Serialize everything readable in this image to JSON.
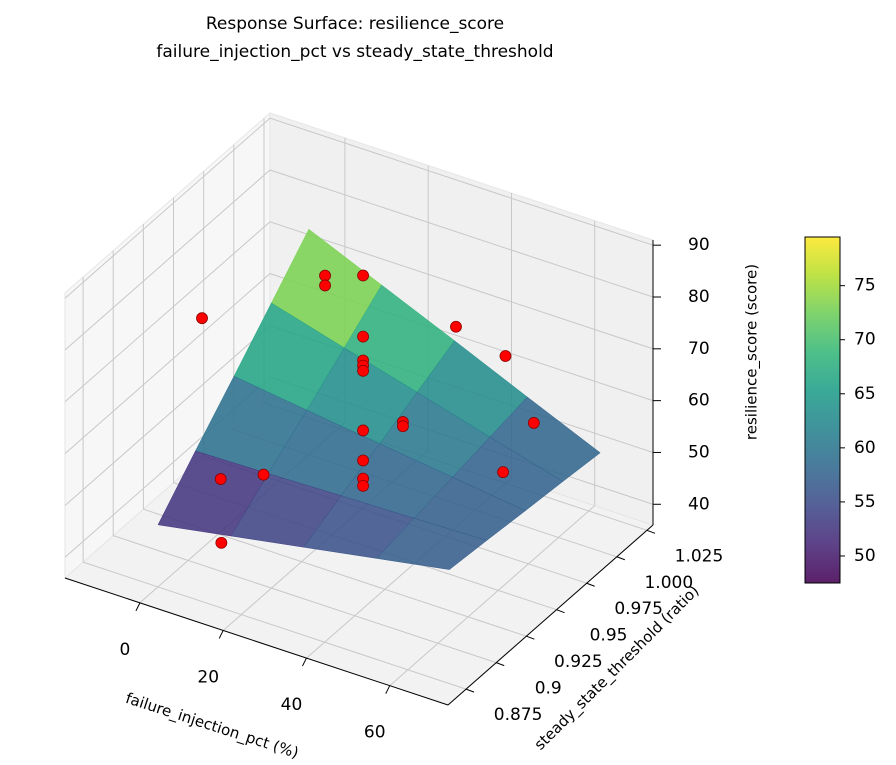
{
  "chart_data": {
    "type": "surface3d",
    "title": [
      "Response Surface: resilience_score",
      "failure_injection_pct vs steady_state_threshold"
    ],
    "xlabel": "failure_injection_pct (%)",
    "ylabel": "steady_state_threshold (ratio)",
    "zlabel": "resilience_score (score)",
    "xlim": [
      -18,
      74
    ],
    "ylim": [
      0.86,
      1.03
    ],
    "zlim": [
      36,
      91
    ],
    "xticks": [
      0,
      20,
      40,
      60
    ],
    "yticks": [
      0.875,
      0.9,
      0.925,
      0.95,
      0.975,
      {
        "value": 1.0,
        "label": "1.000"
      },
      1.025
    ],
    "zticks": [
      40,
      50,
      60,
      70,
      80,
      90
    ],
    "grid": true,
    "colormap": "viridis",
    "surface": {
      "x": [
        0,
        17.5,
        35,
        52.5,
        70
      ],
      "y": [
        0.875,
        0.906,
        0.938,
        0.969,
        1.0
      ],
      "z": [
        [
          48,
          50.5,
          53,
          55.5,
          58
        ],
        [
          55.9,
          56.2,
          56.6,
          56.9,
          57.3
        ],
        [
          63.8,
          61.9,
          60.1,
          58.3,
          56.5
        ],
        [
          71.6,
          67.6,
          63.7,
          59.7,
          55.8
        ],
        [
          79.5,
          73.4,
          67.3,
          61.1,
          55
        ]
      ]
    },
    "points": {
      "color": "#ff0000",
      "x": [
        20,
        20,
        20,
        20,
        20,
        20,
        20,
        20,
        20,
        -10,
        10,
        10,
        0,
        10,
        10,
        40,
        60,
        70,
        60,
        40,
        40
      ],
      "y": [
        0.976,
        0.976,
        0.976,
        0.976,
        0.976,
        0.976,
        0.976,
        0.976,
        0.976,
        0.946,
        0.979,
        0.979,
        0.927,
        0.928,
        0.893,
        0.984,
        0.956,
        0.945,
        0.954,
        0.94,
        0.94
      ],
      "z": [
        80.8,
        69,
        64.4,
        63.4,
        62.4,
        50.9,
        45.1,
        41.6,
        40.2,
        70.7,
        77.5,
        75.6,
        46.2,
        49.5,
        43.5,
        74.6,
        80,
        72,
        58,
        65.2,
        64.4
      ]
    },
    "colorbar": {
      "lim": [
        47.5,
        79.5
      ],
      "ticks": [
        50,
        55,
        60,
        65,
        70,
        75
      ]
    }
  }
}
